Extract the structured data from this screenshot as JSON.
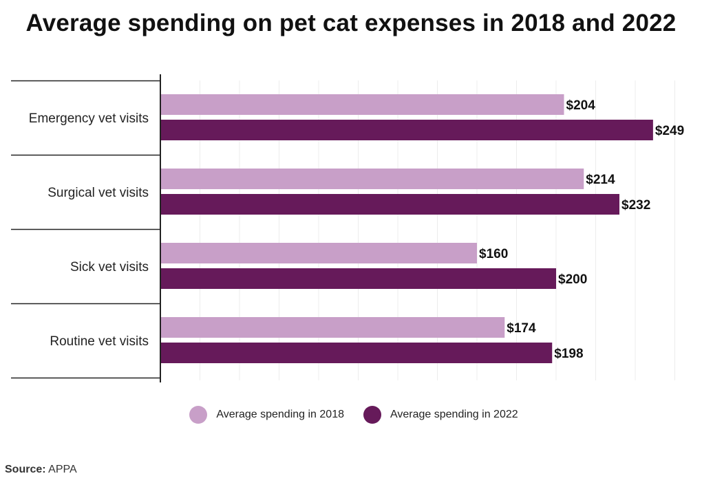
{
  "chart_data": {
    "type": "bar",
    "orientation": "horizontal",
    "title": "Average spending on pet cat expenses in 2018 and 2022",
    "categories": [
      "Emergency vet visits",
      "Surgical vet visits",
      "Sick vet visits",
      "Routine vet visits"
    ],
    "series": [
      {
        "name": "Average spending in 2018",
        "values": [
          204,
          214,
          160,
          174
        ],
        "labels": [
          "$204",
          "$214",
          "$160",
          "$174"
        ],
        "color": "#c89fc8"
      },
      {
        "name": "Average spending in 2022",
        "values": [
          249,
          232,
          200,
          198
        ],
        "labels": [
          "$249",
          "$232",
          "$200",
          "$198"
        ],
        "color": "#661a5a"
      }
    ],
    "xlim": [
      0,
      260
    ],
    "grid": true,
    "legend_position": "bottom-center"
  },
  "source": {
    "label": "Source:",
    "value": "APPA"
  }
}
